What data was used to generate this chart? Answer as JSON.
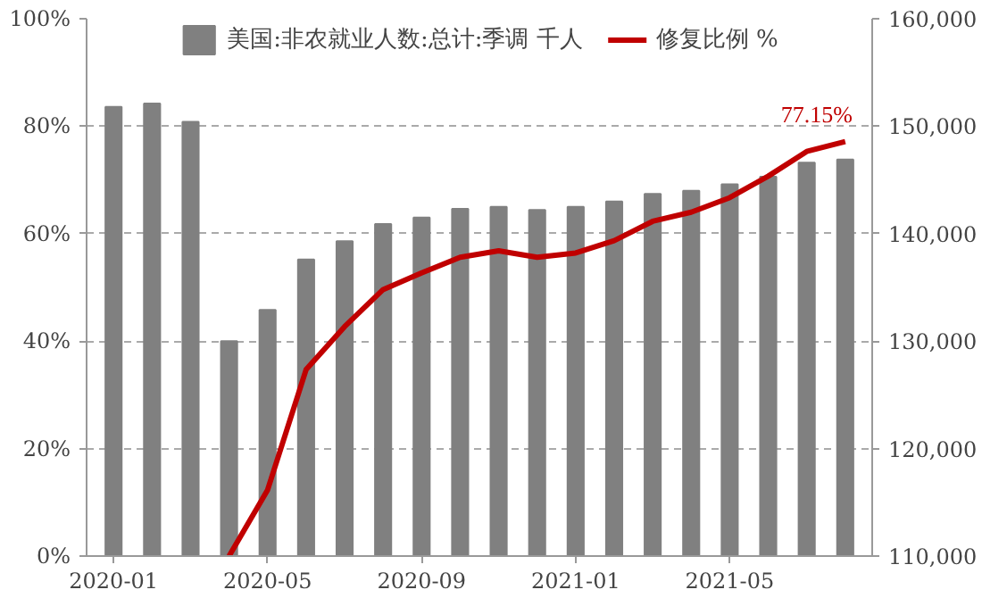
{
  "chart_data": {
    "type": "bar",
    "categories": [
      "2020-01",
      null,
      null,
      null,
      "2020-05",
      null,
      null,
      null,
      "2020-09",
      null,
      null,
      null,
      "2021-01",
      null,
      null,
      null,
      "2021-05",
      null,
      null,
      null
    ],
    "series": [
      {
        "name": "美国:非农就业人数:总计:季调 千人",
        "type": "bar",
        "axis": "y2",
        "color": "#808080",
        "values": [
          151800,
          152100,
          150400,
          130000,
          132900,
          137600,
          139300,
          140900,
          141500,
          142300,
          142500,
          142200,
          142500,
          143000,
          143700,
          144000,
          144600,
          145300,
          146600,
          146900
        ]
      },
      {
        "name": "修复比例 %",
        "type": "line",
        "color": "#c00000",
        "values": [
          null,
          null,
          null,
          0,
          12.3,
          34.7,
          42.7,
          49.6,
          52.7,
          55.6,
          56.8,
          55.6,
          56.4,
          58.7,
          62.3,
          64.0,
          66.7,
          70.7,
          75.3,
          77.15
        ],
        "value_labels": [
          null,
          null,
          null,
          null,
          null,
          null,
          null,
          null,
          null,
          null,
          null,
          null,
          null,
          null,
          null,
          null,
          null,
          null,
          null,
          "77.15%"
        ]
      }
    ],
    "ylim": [
      0,
      100
    ],
    "yticks": [
      {
        "value": 0,
        "label": "0%"
      },
      {
        "value": 20,
        "label": "20%"
      },
      {
        "value": 40,
        "label": "40%"
      },
      {
        "value": 60,
        "label": "60%"
      },
      {
        "value": 80,
        "label": "80%"
      },
      {
        "value": 100,
        "label": "100%"
      }
    ],
    "y2lim": [
      110000,
      160000
    ],
    "y2ticks": [
      {
        "value": 110000,
        "label": "110,000"
      },
      {
        "value": 120000,
        "label": "120,000"
      },
      {
        "value": 130000,
        "label": "130,000"
      },
      {
        "value": 140000,
        "label": "140,000"
      },
      {
        "value": 150000,
        "label": "150,000"
      },
      {
        "value": 160000,
        "label": "160,000"
      }
    ],
    "grid": "y",
    "legend": "top",
    "line_style": "solid",
    "marker": "none"
  }
}
